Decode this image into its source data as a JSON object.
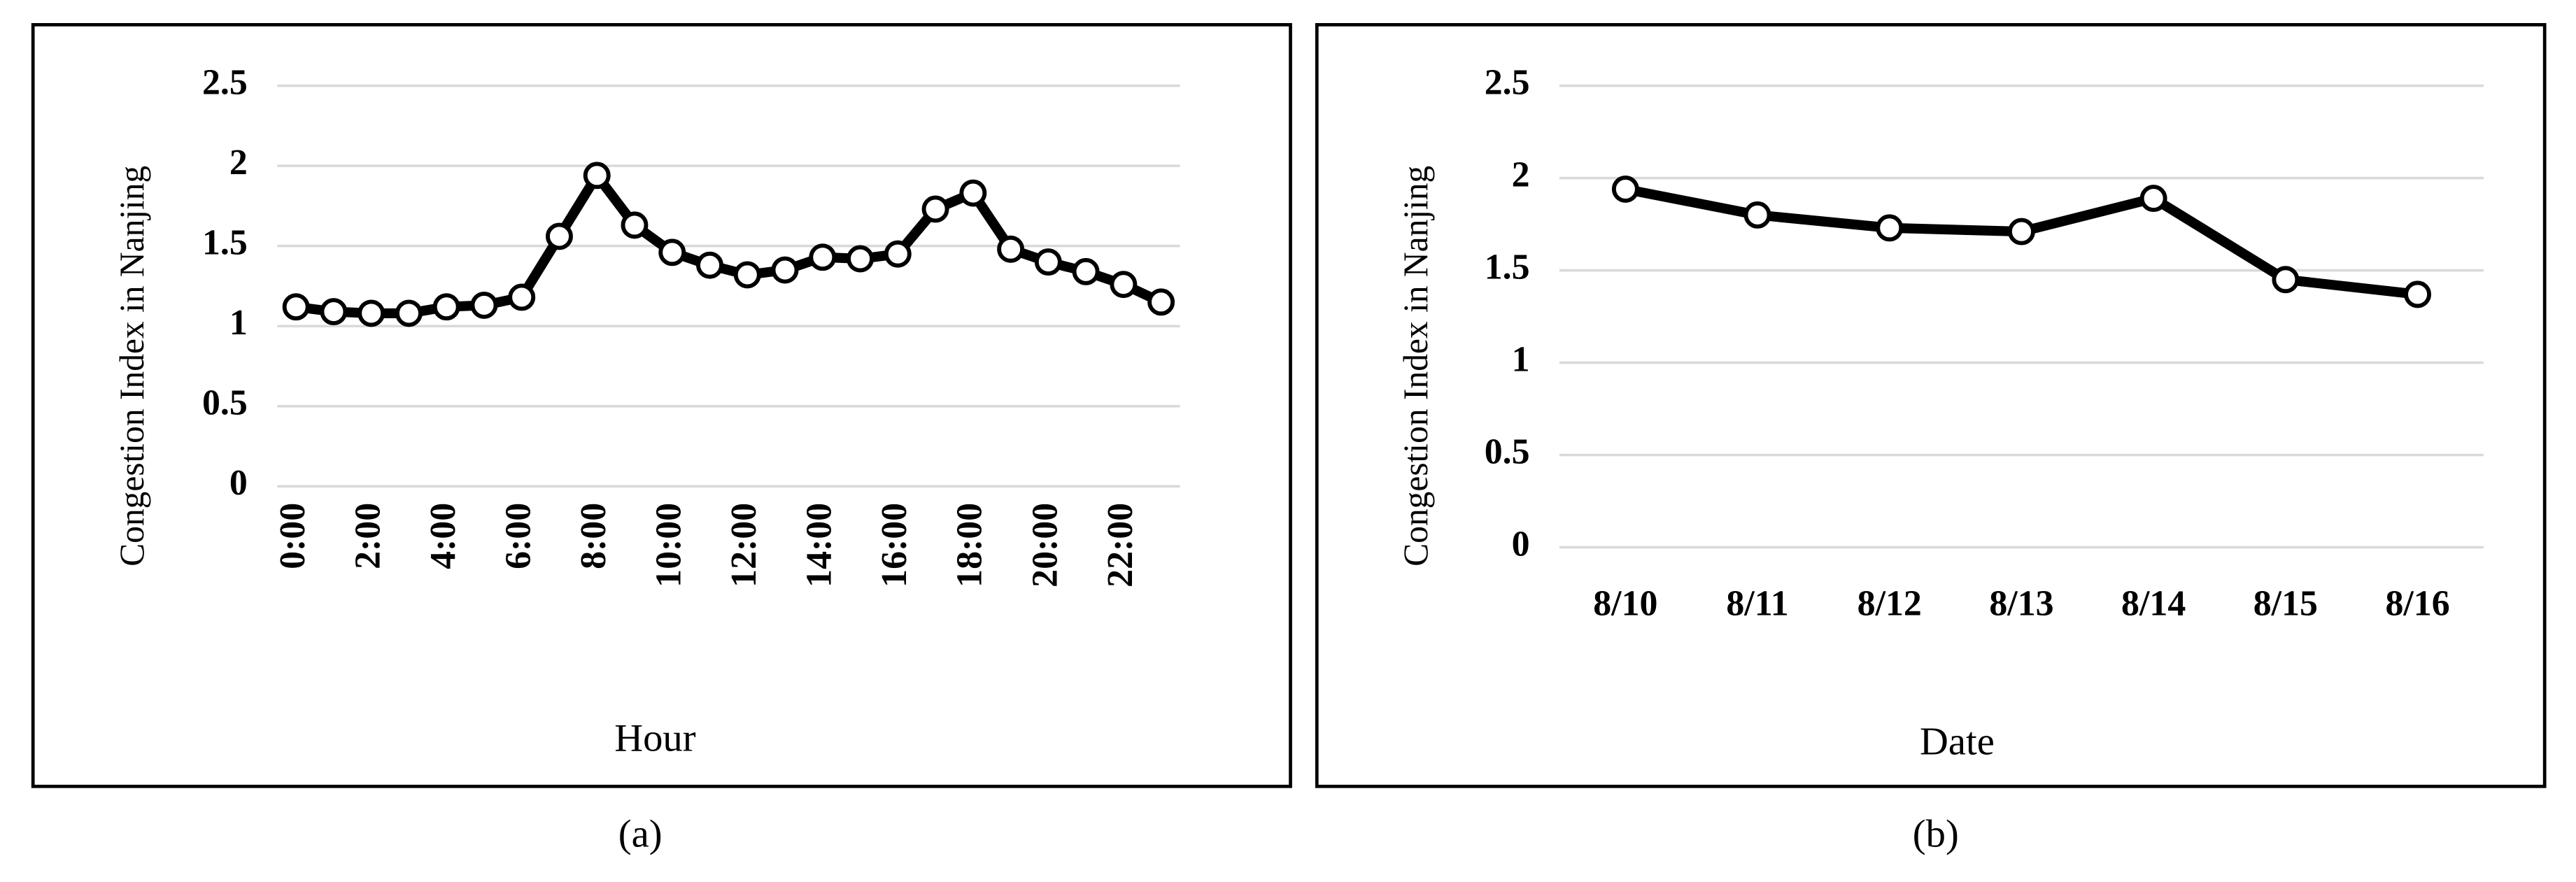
{
  "chart_data": [
    {
      "type": "line",
      "caption": "(a)",
      "x_label": "Hour",
      "y_label": "Congestion  Index in Nanjing",
      "categories": [
        "0:00",
        null,
        "2:00",
        null,
        "4:00",
        null,
        "6:00",
        null,
        "8:00",
        null,
        "10:00",
        null,
        "12:00",
        null,
        "14:00",
        null,
        "16:00",
        null,
        "18:00",
        null,
        "20:00",
        null,
        "22:00",
        null
      ],
      "values": [
        1.12,
        1.09,
        1.08,
        1.08,
        1.12,
        1.13,
        1.18,
        1.56,
        1.94,
        1.63,
        1.46,
        1.38,
        1.32,
        1.35,
        1.43,
        1.42,
        1.45,
        1.73,
        1.83,
        1.48,
        1.4,
        1.34,
        1.26,
        1.15
      ],
      "color": "#000000",
      "ylim": [
        0,
        2.5
      ],
      "yticks": [
        0,
        0.5,
        1,
        1.5,
        2,
        2.5
      ],
      "grid": true
    },
    {
      "type": "line",
      "caption": "(b)",
      "x_label": "Date",
      "y_label": "Congestion Index in Nanjing",
      "categories": [
        "8/10",
        "8/11",
        "8/12",
        "8/13",
        "8/14",
        "8/15",
        "8/16"
      ],
      "values": [
        1.94,
        1.8,
        1.73,
        1.71,
        1.89,
        1.45,
        1.37
      ],
      "color": "#000000",
      "ylim": [
        0,
        2.5
      ],
      "yticks": [
        0,
        0.5,
        1,
        1.5,
        2,
        2.5
      ],
      "grid": true
    }
  ]
}
